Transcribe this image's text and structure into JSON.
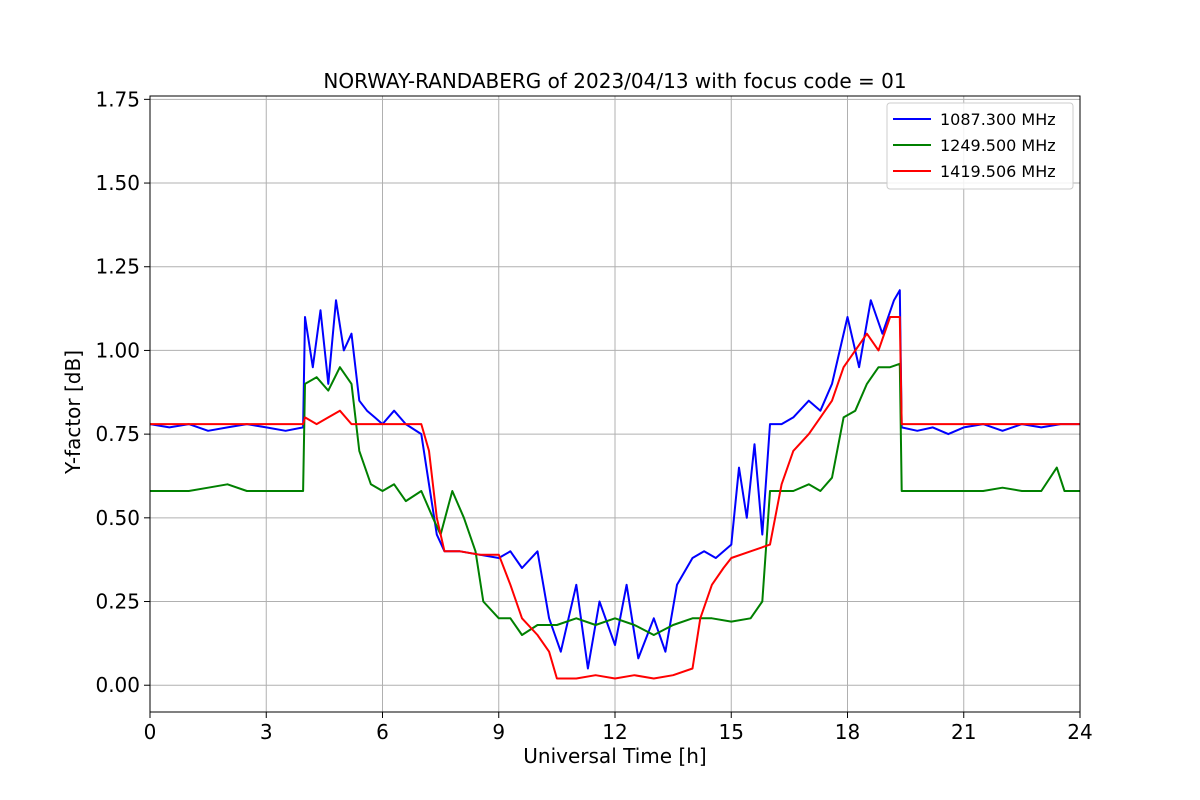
{
  "chart_data": {
    "type": "line",
    "title": "NORWAY-RANDABERG of 2023/04/13 with focus code = 01",
    "xlabel": "Universal Time [h]",
    "ylabel": "Y-factor [dB]",
    "xlim": [
      0,
      24
    ],
    "ylim": [
      -0.08,
      1.76
    ],
    "xticks": [
      0,
      3,
      6,
      9,
      12,
      15,
      18,
      21,
      24
    ],
    "xtick_labels": [
      "0",
      "3",
      "6",
      "9",
      "12",
      "15",
      "18",
      "21",
      "24"
    ],
    "yticks": [
      0.0,
      0.25,
      0.5,
      0.75,
      1.0,
      1.25,
      1.5,
      1.75
    ],
    "ytick_labels": [
      "0.00",
      "0.25",
      "0.50",
      "0.75",
      "1.00",
      "1.25",
      "1.50",
      "1.75"
    ],
    "grid": true,
    "legend_position": "top-right",
    "series": [
      {
        "name": "1087.300 MHz",
        "color": "#0000ff",
        "x": [
          0,
          0.5,
          1,
          1.5,
          2,
          2.5,
          3,
          3.5,
          3.95,
          4.0,
          4.2,
          4.4,
          4.6,
          4.8,
          5.0,
          5.2,
          5.4,
          5.6,
          5.8,
          6.0,
          6.3,
          6.6,
          7.0,
          7.2,
          7.4,
          7.6,
          8.0,
          8.5,
          9.0,
          9.3,
          9.6,
          10.0,
          10.3,
          10.6,
          11.0,
          11.3,
          11.6,
          12.0,
          12.3,
          12.6,
          13.0,
          13.3,
          13.6,
          14.0,
          14.3,
          14.6,
          15.0,
          15.2,
          15.4,
          15.6,
          15.8,
          16.0,
          16.3,
          16.6,
          17.0,
          17.3,
          17.6,
          18.0,
          18.3,
          18.6,
          18.9,
          19.2,
          19.35,
          19.4,
          19.8,
          20.2,
          20.6,
          21.0,
          21.5,
          22.0,
          22.5,
          23.0,
          23.5,
          24.0
        ],
        "values": [
          0.78,
          0.77,
          0.78,
          0.76,
          0.77,
          0.78,
          0.77,
          0.76,
          0.77,
          1.1,
          0.95,
          1.12,
          0.9,
          1.15,
          1.0,
          1.05,
          0.85,
          0.82,
          0.8,
          0.78,
          0.82,
          0.78,
          0.75,
          0.6,
          0.45,
          0.4,
          0.4,
          0.39,
          0.38,
          0.4,
          0.35,
          0.4,
          0.2,
          0.1,
          0.3,
          0.05,
          0.25,
          0.12,
          0.3,
          0.08,
          0.2,
          0.1,
          0.3,
          0.38,
          0.4,
          0.38,
          0.42,
          0.65,
          0.5,
          0.72,
          0.45,
          0.78,
          0.78,
          0.8,
          0.85,
          0.82,
          0.9,
          1.1,
          0.95,
          1.15,
          1.05,
          1.15,
          1.18,
          0.77,
          0.76,
          0.77,
          0.75,
          0.77,
          0.78,
          0.76,
          0.78,
          0.77,
          0.78,
          0.78
        ]
      },
      {
        "name": "1249.500 MHz",
        "color": "#008000",
        "x": [
          0,
          0.5,
          1,
          1.5,
          2,
          2.5,
          3,
          3.5,
          3.95,
          4.0,
          4.3,
          4.6,
          4.9,
          5.2,
          5.4,
          5.7,
          6.0,
          6.3,
          6.6,
          7.0,
          7.3,
          7.5,
          7.8,
          8.1,
          8.4,
          8.6,
          9.0,
          9.3,
          9.6,
          10.0,
          10.5,
          11.0,
          11.5,
          12.0,
          12.5,
          13.0,
          13.5,
          14.0,
          14.5,
          15.0,
          15.5,
          15.8,
          16.0,
          16.3,
          16.6,
          17.0,
          17.3,
          17.6,
          17.9,
          18.2,
          18.5,
          18.8,
          19.1,
          19.35,
          19.4,
          19.8,
          20.2,
          20.6,
          21.0,
          21.5,
          22.0,
          22.5,
          23.0,
          23.4,
          23.6,
          24.0
        ],
        "values": [
          0.58,
          0.58,
          0.58,
          0.59,
          0.6,
          0.58,
          0.58,
          0.58,
          0.58,
          0.9,
          0.92,
          0.88,
          0.95,
          0.9,
          0.7,
          0.6,
          0.58,
          0.6,
          0.55,
          0.58,
          0.5,
          0.45,
          0.58,
          0.5,
          0.4,
          0.25,
          0.2,
          0.2,
          0.15,
          0.18,
          0.18,
          0.2,
          0.18,
          0.2,
          0.18,
          0.15,
          0.18,
          0.2,
          0.2,
          0.19,
          0.2,
          0.25,
          0.58,
          0.58,
          0.58,
          0.6,
          0.58,
          0.62,
          0.8,
          0.82,
          0.9,
          0.95,
          0.95,
          0.96,
          0.58,
          0.58,
          0.58,
          0.58,
          0.58,
          0.58,
          0.59,
          0.58,
          0.58,
          0.65,
          0.58,
          0.58
        ]
      },
      {
        "name": "1419.506 MHz",
        "color": "#ff0000",
        "x": [
          0,
          0.5,
          1,
          1.5,
          2,
          2.5,
          3,
          3.5,
          3.95,
          4.0,
          4.3,
          4.6,
          4.9,
          5.2,
          5.5,
          6.0,
          6.5,
          7.0,
          7.2,
          7.4,
          7.6,
          8.0,
          8.5,
          9.0,
          9.3,
          9.6,
          10.0,
          10.3,
          10.5,
          11.0,
          11.5,
          12.0,
          12.5,
          13.0,
          13.5,
          14.0,
          14.2,
          14.5,
          14.8,
          15.0,
          15.5,
          16.0,
          16.3,
          16.6,
          17.0,
          17.3,
          17.6,
          17.9,
          18.2,
          18.5,
          18.8,
          19.1,
          19.35,
          19.4,
          19.8,
          20.2,
          20.6,
          21.0,
          21.5,
          22.0,
          22.5,
          23.0,
          23.5,
          24.0
        ],
        "values": [
          0.78,
          0.78,
          0.78,
          0.78,
          0.78,
          0.78,
          0.78,
          0.78,
          0.78,
          0.8,
          0.78,
          0.8,
          0.82,
          0.78,
          0.78,
          0.78,
          0.78,
          0.78,
          0.7,
          0.5,
          0.4,
          0.4,
          0.39,
          0.39,
          0.3,
          0.2,
          0.15,
          0.1,
          0.02,
          0.02,
          0.03,
          0.02,
          0.03,
          0.02,
          0.03,
          0.05,
          0.2,
          0.3,
          0.35,
          0.38,
          0.4,
          0.42,
          0.6,
          0.7,
          0.75,
          0.8,
          0.85,
          0.95,
          1.0,
          1.05,
          1.0,
          1.1,
          1.1,
          0.78,
          0.78,
          0.78,
          0.78,
          0.78,
          0.78,
          0.78,
          0.78,
          0.78,
          0.78,
          0.78
        ]
      }
    ]
  }
}
